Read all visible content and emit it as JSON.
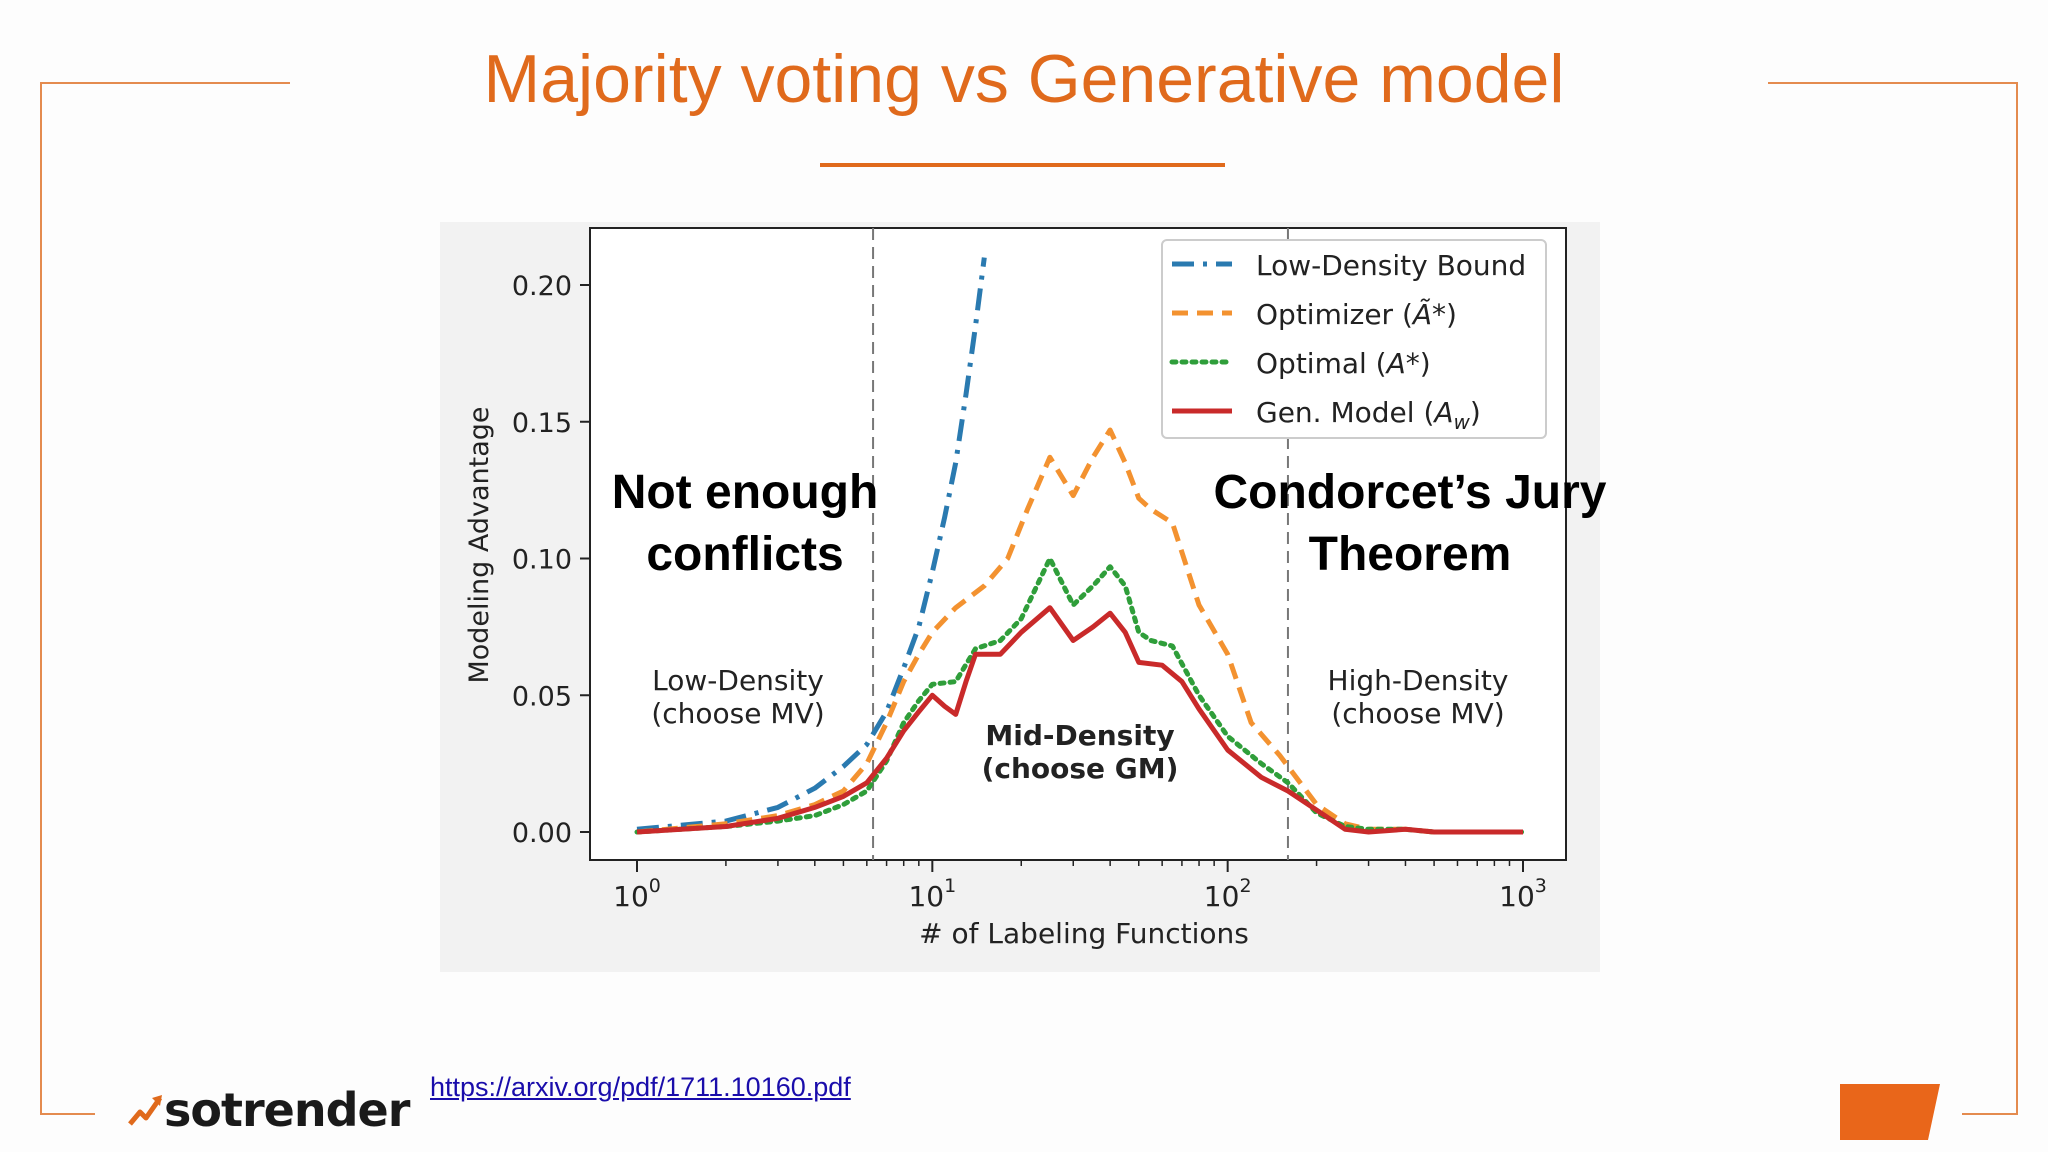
{
  "slide": {
    "title": "Majority voting vs Generative model",
    "source_url": "https://arxiv.org/pdf/1711.10160.pdf",
    "brand": "sotrender",
    "accent_color": "#e06a1c"
  },
  "chart_data": {
    "type": "line",
    "xscale": "log",
    "xlim": [
      1,
      1000
    ],
    "ylim": [
      0,
      0.22
    ],
    "xlabel": "# of Labeling Functions",
    "ylabel": "Modeling Advantage",
    "x_ticks": [
      1,
      10,
      100,
      1000
    ],
    "x_tick_labels": [
      {
        "base": "10",
        "exp": "0"
      },
      {
        "base": "10",
        "exp": "1"
      },
      {
        "base": "10",
        "exp": "2"
      },
      {
        "base": "10",
        "exp": "3"
      }
    ],
    "y_ticks": [
      0.0,
      0.05,
      0.1,
      0.15,
      0.2
    ],
    "y_tick_labels": [
      "0.00",
      "0.05",
      "0.10",
      "0.15",
      "0.20"
    ],
    "legend_position": "top-right",
    "grid": false,
    "vlines": [
      6.3,
      160
    ],
    "series": [
      {
        "name": "Low-Density Bound",
        "legend_main": "Low-Density Bound",
        "legend_sym": "",
        "style": "dashdot",
        "color": "#2a7ab0",
        "points": [
          [
            1,
            0.001
          ],
          [
            2,
            0.004
          ],
          [
            3,
            0.009
          ],
          [
            4,
            0.016
          ],
          [
            5,
            0.024
          ],
          [
            6,
            0.032
          ],
          [
            7,
            0.044
          ],
          [
            8,
            0.06
          ],
          [
            9,
            0.075
          ],
          [
            10,
            0.095
          ],
          [
            11,
            0.115
          ],
          [
            12,
            0.135
          ],
          [
            13,
            0.16
          ],
          [
            14,
            0.185
          ],
          [
            15,
            0.21
          ]
        ]
      },
      {
        "name": "Optimizer (Ã*)",
        "legend_main": "Optimizer (",
        "legend_sym": "Ã*",
        "legend_end": ")",
        "style": "dashed",
        "color": "#f39230",
        "points": [
          [
            1,
            0.0
          ],
          [
            2,
            0.003
          ],
          [
            3,
            0.006
          ],
          [
            4,
            0.01
          ],
          [
            5,
            0.015
          ],
          [
            6,
            0.025
          ],
          [
            7,
            0.04
          ],
          [
            8,
            0.055
          ],
          [
            9,
            0.065
          ],
          [
            10,
            0.073
          ],
          [
            12,
            0.082
          ],
          [
            15,
            0.09
          ],
          [
            18,
            0.1
          ],
          [
            21,
            0.118
          ],
          [
            25,
            0.137
          ],
          [
            30,
            0.123
          ],
          [
            35,
            0.137
          ],
          [
            40,
            0.147
          ],
          [
            45,
            0.135
          ],
          [
            50,
            0.122
          ],
          [
            55,
            0.118
          ],
          [
            65,
            0.113
          ],
          [
            80,
            0.083
          ],
          [
            100,
            0.065
          ],
          [
            120,
            0.04
          ],
          [
            150,
            0.028
          ],
          [
            200,
            0.01
          ],
          [
            250,
            0.003
          ],
          [
            300,
            0.001
          ],
          [
            400,
            0.001
          ],
          [
            500,
            0.0
          ],
          [
            1000,
            0.0
          ]
        ]
      },
      {
        "name": "Optimal (A*)",
        "legend_main": "Optimal (",
        "legend_sym": "A*",
        "legend_end": ")",
        "style": "dotted",
        "color": "#2f9e3a",
        "points": [
          [
            1,
            0.0
          ],
          [
            2,
            0.002
          ],
          [
            3,
            0.004
          ],
          [
            4,
            0.006
          ],
          [
            5,
            0.01
          ],
          [
            6,
            0.015
          ],
          [
            7,
            0.026
          ],
          [
            8,
            0.04
          ],
          [
            9,
            0.048
          ],
          [
            10,
            0.054
          ],
          [
            12,
            0.055
          ],
          [
            14,
            0.067
          ],
          [
            17,
            0.07
          ],
          [
            20,
            0.078
          ],
          [
            25,
            0.1
          ],
          [
            30,
            0.083
          ],
          [
            35,
            0.09
          ],
          [
            40,
            0.097
          ],
          [
            45,
            0.09
          ],
          [
            50,
            0.073
          ],
          [
            55,
            0.07
          ],
          [
            65,
            0.068
          ],
          [
            80,
            0.05
          ],
          [
            100,
            0.035
          ],
          [
            130,
            0.025
          ],
          [
            160,
            0.018
          ],
          [
            200,
            0.007
          ],
          [
            250,
            0.002
          ],
          [
            300,
            0.001
          ],
          [
            400,
            0.001
          ],
          [
            500,
            0.0
          ],
          [
            1000,
            0.0
          ]
        ]
      },
      {
        "name": "Gen. Model (Aw)",
        "legend_main": "Gen. Model (",
        "legend_sym": "A",
        "legend_sub": "w",
        "legend_end": ")",
        "style": "solid",
        "color": "#c92a2a",
        "points": [
          [
            1,
            0.0
          ],
          [
            2,
            0.002
          ],
          [
            3,
            0.005
          ],
          [
            4,
            0.009
          ],
          [
            5,
            0.013
          ],
          [
            6,
            0.018
          ],
          [
            7,
            0.027
          ],
          [
            8,
            0.037
          ],
          [
            9,
            0.044
          ],
          [
            10,
            0.05
          ],
          [
            11,
            0.046
          ],
          [
            12,
            0.043
          ],
          [
            13,
            0.055
          ],
          [
            14,
            0.065
          ],
          [
            17,
            0.065
          ],
          [
            20,
            0.073
          ],
          [
            25,
            0.082
          ],
          [
            30,
            0.07
          ],
          [
            35,
            0.075
          ],
          [
            40,
            0.08
          ],
          [
            45,
            0.073
          ],
          [
            50,
            0.062
          ],
          [
            60,
            0.061
          ],
          [
            70,
            0.055
          ],
          [
            80,
            0.045
          ],
          [
            100,
            0.03
          ],
          [
            130,
            0.02
          ],
          [
            160,
            0.015
          ],
          [
            200,
            0.008
          ],
          [
            250,
            0.001
          ],
          [
            300,
            0.0
          ],
          [
            400,
            0.001
          ],
          [
            500,
            0.0
          ],
          [
            1000,
            0.0
          ]
        ]
      }
    ],
    "annotations": [
      {
        "lines": [
          "Low-Density",
          "(choose MV)"
        ],
        "style": "normal"
      },
      {
        "lines": [
          "Mid-Density",
          "(choose GM)"
        ],
        "style": "bold"
      },
      {
        "lines": [
          "High-Density",
          "(choose MV)"
        ],
        "style": "normal"
      }
    ],
    "overlay_labels": [
      {
        "lines": [
          "Not enough",
          "conflicts"
        ]
      },
      {
        "lines": [
          "Condorcet’s Jury",
          "Theorem"
        ]
      }
    ]
  }
}
